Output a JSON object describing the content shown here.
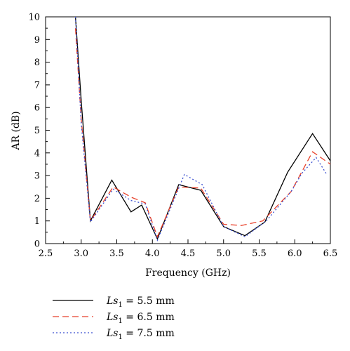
{
  "chart_data": {
    "type": "line",
    "xlabel": "Frequency (GHz)",
    "ylabel": "AR (dB)",
    "xlim": [
      2.5,
      6.5
    ],
    "ylim": [
      0,
      10
    ],
    "xticks": [
      "2.5",
      "3.0",
      "3.5",
      "4.0",
      "4.5",
      "5.0",
      "5.5",
      "6.0",
      "6.5"
    ],
    "yticks": [
      "0",
      "1",
      "2",
      "3",
      "4",
      "5",
      "6",
      "7",
      "8",
      "9",
      "10"
    ],
    "grid": false,
    "legend_position": "bottom-left, below plot",
    "series": [
      {
        "name_symbol": "Ls",
        "name_subscript": "1",
        "name_value": " = 5.5 mm",
        "color": "#000000",
        "dash": "solid",
        "points": [
          [
            2.92,
            10.0
          ],
          [
            3.0,
            6.3
          ],
          [
            3.13,
            1.0
          ],
          [
            3.43,
            2.8
          ],
          [
            3.7,
            1.4
          ],
          [
            3.85,
            1.7
          ],
          [
            4.07,
            0.2
          ],
          [
            4.37,
            2.6
          ],
          [
            4.68,
            2.35
          ],
          [
            5.0,
            0.75
          ],
          [
            5.3,
            0.35
          ],
          [
            5.58,
            0.95
          ],
          [
            5.9,
            3.15
          ],
          [
            6.25,
            4.85
          ],
          [
            6.5,
            3.65
          ]
        ]
      },
      {
        "name_symbol": "Ls",
        "name_subscript": "1",
        "name_value": " = 6.5 mm",
        "color": "#e8402a",
        "dash": "dashed",
        "points": [
          [
            2.92,
            9.5
          ],
          [
            3.0,
            5.5
          ],
          [
            3.13,
            1.0
          ],
          [
            3.45,
            2.5
          ],
          [
            3.7,
            2.05
          ],
          [
            3.9,
            1.8
          ],
          [
            4.07,
            0.3
          ],
          [
            4.37,
            2.5
          ],
          [
            4.68,
            2.45
          ],
          [
            5.0,
            0.85
          ],
          [
            5.25,
            0.8
          ],
          [
            5.55,
            1.0
          ],
          [
            5.95,
            2.3
          ],
          [
            6.25,
            4.05
          ],
          [
            6.5,
            3.5
          ]
        ]
      },
      {
        "name_symbol": "Ls",
        "name_subscript": "1",
        "name_value": " = 7.5 mm",
        "color": "#3a4fd0",
        "dash": "dotted",
        "points": [
          [
            2.92,
            10.0
          ],
          [
            3.0,
            5.3
          ],
          [
            3.13,
            0.95
          ],
          [
            3.45,
            2.4
          ],
          [
            3.7,
            1.9
          ],
          [
            3.9,
            1.75
          ],
          [
            4.07,
            0.15
          ],
          [
            4.45,
            3.05
          ],
          [
            4.7,
            2.6
          ],
          [
            5.0,
            0.75
          ],
          [
            5.3,
            0.3
          ],
          [
            5.6,
            1.0
          ],
          [
            5.95,
            2.3
          ],
          [
            6.1,
            3.1
          ],
          [
            6.3,
            3.8
          ],
          [
            6.45,
            3.05
          ]
        ]
      }
    ]
  }
}
